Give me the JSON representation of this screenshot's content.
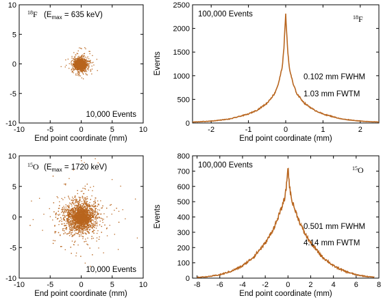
{
  "chart_data": [
    {
      "id": "f18_scatter",
      "type": "scatter",
      "isotope_mass": "18",
      "isotope_symbol": "F",
      "emax_label": "max",
      "emax_value": "635 keV",
      "events_label": "10,000 Events",
      "xlabel": "End point coordinate (mm)",
      "ylabel": "",
      "xlim": [
        -10,
        10
      ],
      "ylim": [
        -10,
        10
      ],
      "xticks": [
        -10,
        -5,
        0,
        5,
        10
      ],
      "yticks": [
        -10,
        -5,
        0,
        5,
        10
      ],
      "n_points": 10000,
      "spread_sigma_mm": 0.45,
      "cloud_center": [
        -0.1,
        -0.1
      ],
      "color": "#b8651e"
    },
    {
      "id": "f18_profile",
      "type": "line",
      "events_label": "100,000 Events",
      "isotope_mass": "18",
      "isotope_symbol": "F",
      "fwhm_label": "0.102 mm FWHM",
      "fwtm_label": "1.03 mm FWTM",
      "xlabel": "End point coordinate (mm)",
      "ylabel": "Events",
      "xlim": [
        -2.5,
        2.5
      ],
      "ylim": [
        0,
        2500
      ],
      "xticks": [
        -2,
        -1,
        0,
        1,
        2
      ],
      "yticks": [
        0,
        500,
        1000,
        1500,
        2000,
        2500
      ],
      "x": [
        -2.5,
        -2.0,
        -1.5,
        -1.0,
        -0.75,
        -0.5,
        -0.3,
        -0.2,
        -0.1,
        -0.05,
        0.0,
        0.05,
        0.1,
        0.2,
        0.3,
        0.5,
        0.75,
        1.0,
        1.5,
        2.0,
        2.5
      ],
      "y": [
        20,
        40,
        85,
        190,
        280,
        420,
        620,
        820,
        1150,
        1550,
        2330,
        1550,
        1150,
        820,
        620,
        420,
        280,
        190,
        85,
        40,
        20
      ],
      "color": "#b8651e"
    },
    {
      "id": "o15_scatter",
      "type": "scatter",
      "isotope_mass": "15",
      "isotope_symbol": "O",
      "emax_label": "max",
      "emax_value": "1720 keV",
      "events_label": "10,000 Events",
      "xlabel": "End point coordinate (mm)",
      "ylabel": "",
      "xlim": [
        -10,
        10
      ],
      "ylim": [
        -10,
        10
      ],
      "xticks": [
        -10,
        -5,
        0,
        5,
        10
      ],
      "yticks": [
        -10,
        -5,
        0,
        5,
        10
      ],
      "n_points": 10000,
      "spread_sigma_mm": 1.5,
      "cloud_center": [
        0,
        0
      ],
      "color": "#b8651e"
    },
    {
      "id": "o15_profile",
      "type": "line",
      "events_label": "100,000 Events",
      "isotope_mass": "15",
      "isotope_symbol": "O",
      "fwhm_label": "0.501 mm FWHM",
      "fwtm_label": "4.14 mm FWTM",
      "xlabel": "End point coordinate (mm)",
      "ylabel": "Events",
      "xlim": [
        -8.4,
        8
      ],
      "ylim": [
        0,
        800
      ],
      "xticks": [
        -8,
        -6,
        -4,
        -2,
        0,
        2,
        4,
        6,
        8
      ],
      "yticks": [
        0,
        100,
        200,
        300,
        400,
        500,
        600,
        700,
        800
      ],
      "x": [
        -8.0,
        -7.0,
        -6.0,
        -5.0,
        -4.0,
        -3.0,
        -2.0,
        -1.5,
        -1.0,
        -0.6,
        -0.3,
        -0.15,
        0.0,
        0.15,
        0.3,
        0.6,
        1.0,
        1.5,
        2.0,
        3.0,
        4.0,
        5.0,
        6.0,
        7.0,
        7.6
      ],
      "y": [
        5,
        10,
        22,
        45,
        80,
        140,
        230,
        290,
        370,
        450,
        520,
        590,
        730,
        590,
        520,
        450,
        370,
        290,
        230,
        140,
        80,
        45,
        22,
        10,
        6
      ],
      "color": "#b8651e"
    }
  ]
}
